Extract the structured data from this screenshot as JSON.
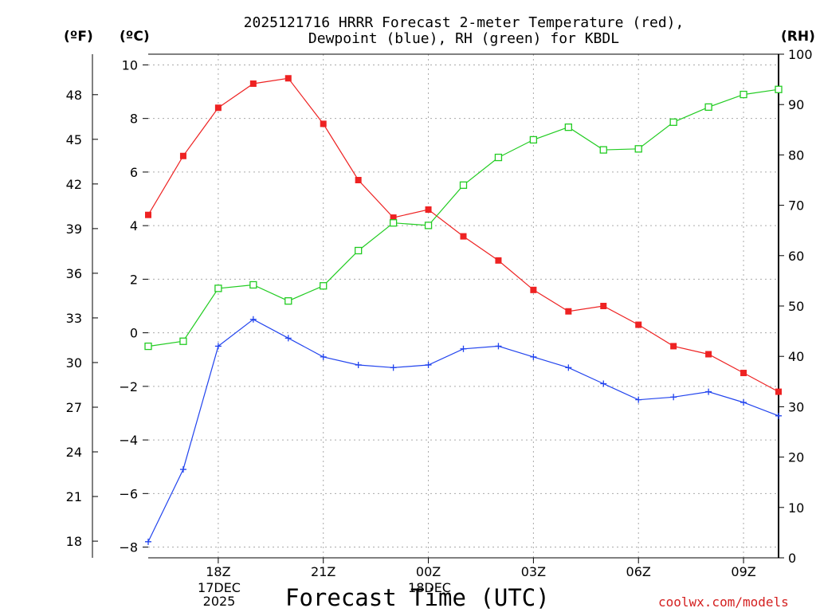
{
  "titles": {
    "line1": "2025121716 HRRR Forecast 2-meter Temperature (red),",
    "line2": "Dewpoint (blue), RH (green) for KBDL"
  },
  "units": {
    "fahrenheit": "(ºF)",
    "celsius": "(ºC)",
    "rh": "(RH)"
  },
  "credit": "coolwx.com/models",
  "chart_data": {
    "type": "line",
    "title": "2025121716 HRRR Forecast 2-meter Temperature (red), Dewpoint (blue), RH (green) for KBDL",
    "xlabel": "Forecast Time (UTC)",
    "x": [
      16,
      17,
      18,
      19,
      20,
      21,
      22,
      23,
      24,
      25,
      26,
      27,
      28,
      29,
      30,
      31,
      32,
      33,
      34
    ],
    "xlim": [
      16,
      34
    ],
    "xticks": [
      {
        "x": 18,
        "label": "18Z"
      },
      {
        "x": 21,
        "label": "21Z"
      },
      {
        "x": 24,
        "label": "00Z"
      },
      {
        "x": 27,
        "label": "03Z"
      },
      {
        "x": 30,
        "label": "06Z"
      },
      {
        "x": 33,
        "label": "09Z"
      }
    ],
    "date_labels": [
      {
        "x": 18,
        "lines": [
          "17DEC",
          "2025"
        ]
      },
      {
        "x": 24,
        "lines": [
          "18DEC"
        ]
      }
    ],
    "ylim_c": [
      -8.4,
      10.4
    ],
    "yticks_c": [
      10,
      8,
      6,
      4,
      2,
      0,
      -2,
      -4,
      -6,
      -8
    ],
    "yticks_f": [
      48,
      45,
      42,
      39,
      36,
      33,
      30,
      27,
      24,
      21,
      18
    ],
    "ylim_rh": [
      0,
      100
    ],
    "yticks_rh": [
      100,
      90,
      80,
      70,
      60,
      50,
      40,
      30,
      20,
      10,
      0
    ],
    "series": [
      {
        "name": "Temperature",
        "axis": "c",
        "color": "#ee2222",
        "marker": "square-filled",
        "values": [
          4.4,
          6.6,
          8.4,
          9.3,
          9.5,
          7.8,
          5.7,
          4.3,
          4.6,
          3.6,
          2.7,
          1.6,
          0.8,
          1.0,
          0.3,
          -0.5,
          -0.8,
          -1.5,
          -2.2
        ]
      },
      {
        "name": "Dewpoint",
        "axis": "c",
        "color": "#2244ee",
        "marker": "plus",
        "values": [
          -7.8,
          -5.1,
          -0.5,
          0.5,
          -0.2,
          -0.9,
          -1.2,
          -1.3,
          -1.2,
          -0.6,
          -0.5,
          -0.9,
          -1.3,
          -1.9,
          -2.5,
          -2.4,
          -2.2,
          -2.6,
          -3.1
        ]
      },
      {
        "name": "RH",
        "axis": "rh",
        "color": "#22cc22",
        "marker": "square-open",
        "values": [
          42,
          43,
          53.5,
          54.2,
          51,
          54,
          61,
          66.5,
          66,
          74,
          79.5,
          83,
          85.5,
          81,
          81.2,
          86.5,
          89.5,
          92,
          93
        ]
      }
    ]
  }
}
